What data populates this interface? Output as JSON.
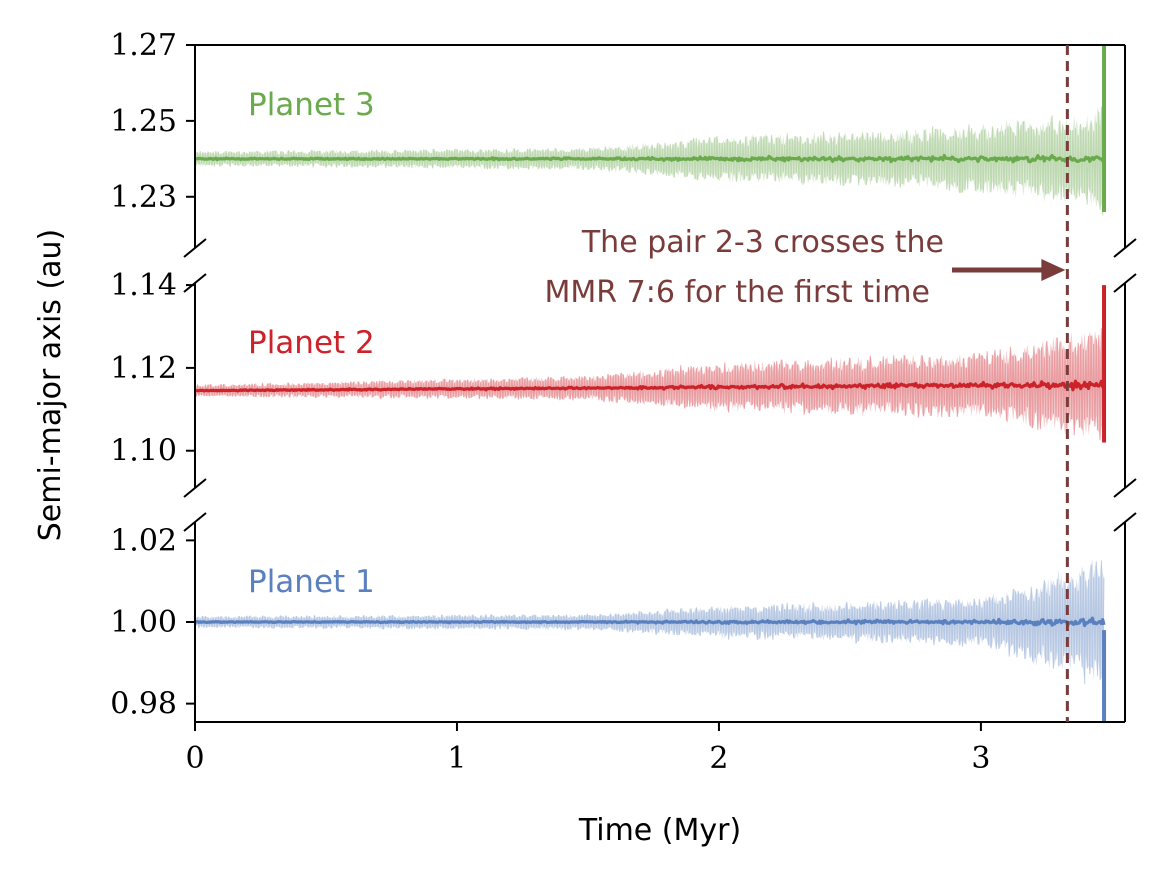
{
  "chart_data": {
    "type": "line",
    "xlabel": "Time (Myr)",
    "ylabel": "Semi-major axis (au)",
    "xlim": [
      0,
      3.55
    ],
    "x_ticks": [
      "0",
      "1",
      "2",
      "3"
    ],
    "x_tick_values": [
      0,
      1,
      2,
      3
    ],
    "grid": false,
    "panels": [
      {
        "name": "Planet 3",
        "color": "#6aaa4c",
        "ylim": [
          1.2165,
          1.27
        ],
        "y_ticks": [
          "1.27",
          "1.25",
          "1.23"
        ],
        "y_tick_values": [
          1.27,
          1.25,
          1.23
        ],
        "mean": 1.24,
        "end_spike": [
          1.226,
          1.27
        ],
        "band_half_width": [
          [
            0,
            0.002
          ],
          [
            1.5,
            0.003
          ],
          [
            2.0,
            0.006
          ],
          [
            2.8,
            0.008
          ],
          [
            3.4,
            0.012
          ],
          [
            3.47,
            0.015
          ]
        ]
      },
      {
        "name": "Planet 2",
        "color": "#cc2229",
        "ylim": [
          1.091,
          1.1405
        ],
        "y_ticks": [
          "1.14",
          "1.12",
          "1.10"
        ],
        "y_tick_values": [
          1.14,
          1.12,
          1.1
        ],
        "mean_start": 1.1145,
        "mean_end": 1.116,
        "end_spike": [
          1.102,
          1.14
        ],
        "band_half_width": [
          [
            0,
            0.0015
          ],
          [
            1.5,
            0.003
          ],
          [
            2.0,
            0.006
          ],
          [
            3.0,
            0.008
          ],
          [
            3.47,
            0.014
          ]
        ]
      },
      {
        "name": "Planet 1",
        "color": "#5a80bf",
        "ylim": [
          0.9755,
          1.0245
        ],
        "y_ticks": [
          "1.02",
          "1.00",
          "0.98"
        ],
        "y_tick_values": [
          1.02,
          1.0,
          0.98
        ],
        "mean": 1.0,
        "end_spike": [
          0.9755,
          0.998
        ],
        "band_half_width": [
          [
            0,
            0.0015
          ],
          [
            1.5,
            0.002
          ],
          [
            2.0,
            0.004
          ],
          [
            3.0,
            0.006
          ],
          [
            3.47,
            0.016
          ]
        ]
      }
    ],
    "vline": {
      "x": 3.33,
      "color": "#7a3b3b",
      "style": "dashed"
    },
    "annotation": {
      "lines": [
        "The pair 2-3 crosses the",
        "MMR 7:6 for the first time"
      ],
      "arrow_to_x": 3.33
    }
  }
}
